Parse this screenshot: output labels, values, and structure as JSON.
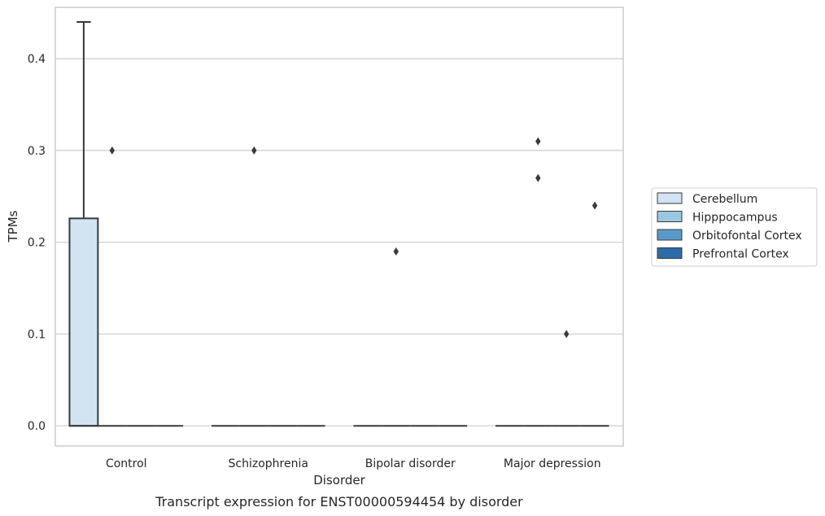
{
  "chart_data": {
    "type": "box",
    "caption": "Transcript expression for ENST00000594454 by disorder",
    "xlabel": "Disorder",
    "ylabel": "TPMs",
    "ylim": [
      -0.022,
      0.456
    ],
    "yticks": [
      0.0,
      0.1,
      0.2,
      0.3,
      0.4
    ],
    "grid": true,
    "legend_position": "right",
    "categories": [
      "Control",
      "Schizophrenia",
      "Bipolar disorder",
      "Major depression"
    ],
    "series": [
      {
        "name": "Cerebellum",
        "color": "#d2e3f2",
        "boxes": [
          {
            "q1": 0.0,
            "median": 0.0,
            "q3": 0.226,
            "whisker_low": 0.0,
            "whisker_high": 0.44,
            "outliers": []
          },
          {
            "q1": 0.0,
            "median": 0.0,
            "q3": 0.0,
            "whisker_low": 0.0,
            "whisker_high": 0.0,
            "outliers": []
          },
          {
            "q1": 0.0,
            "median": 0.0,
            "q3": 0.0,
            "whisker_low": 0.0,
            "whisker_high": 0.0,
            "outliers": []
          },
          {
            "q1": 0.0,
            "median": 0.0,
            "q3": 0.0,
            "whisker_low": 0.0,
            "whisker_high": 0.0,
            "outliers": []
          }
        ]
      },
      {
        "name": "Hipppocampus",
        "color": "#9ac8e0",
        "boxes": [
          {
            "q1": 0.0,
            "median": 0.0,
            "q3": 0.0,
            "whisker_low": 0.0,
            "whisker_high": 0.0,
            "outliers": [
              0.3
            ]
          },
          {
            "q1": 0.0,
            "median": 0.0,
            "q3": 0.0,
            "whisker_low": 0.0,
            "whisker_high": 0.0,
            "outliers": [
              0.3
            ]
          },
          {
            "q1": 0.0,
            "median": 0.0,
            "q3": 0.0,
            "whisker_low": 0.0,
            "whisker_high": 0.0,
            "outliers": [
              0.19
            ]
          },
          {
            "q1": 0.0,
            "median": 0.0,
            "q3": 0.0,
            "whisker_low": 0.0,
            "whisker_high": 0.0,
            "outliers": [
              0.31,
              0.27
            ]
          }
        ]
      },
      {
        "name": "Orbitofontal Cortex",
        "color": "#5a9ac8",
        "boxes": [
          {
            "q1": 0.0,
            "median": 0.0,
            "q3": 0.0,
            "whisker_low": 0.0,
            "whisker_high": 0.0,
            "outliers": []
          },
          {
            "q1": 0.0,
            "median": 0.0,
            "q3": 0.0,
            "whisker_low": 0.0,
            "whisker_high": 0.0,
            "outliers": []
          },
          {
            "q1": 0.0,
            "median": 0.0,
            "q3": 0.0,
            "whisker_low": 0.0,
            "whisker_high": 0.0,
            "outliers": []
          },
          {
            "q1": 0.0,
            "median": 0.0,
            "q3": 0.0,
            "whisker_low": 0.0,
            "whisker_high": 0.0,
            "outliers": [
              0.1
            ]
          }
        ]
      },
      {
        "name": "Prefrontal Cortex",
        "color": "#2b6ca8",
        "boxes": [
          {
            "q1": 0.0,
            "median": 0.0,
            "q3": 0.0,
            "whisker_low": 0.0,
            "whisker_high": 0.0,
            "outliers": []
          },
          {
            "q1": 0.0,
            "median": 0.0,
            "q3": 0.0,
            "whisker_low": 0.0,
            "whisker_high": 0.0,
            "outliers": []
          },
          {
            "q1": 0.0,
            "median": 0.0,
            "q3": 0.0,
            "whisker_low": 0.0,
            "whisker_high": 0.0,
            "outliers": []
          },
          {
            "q1": 0.0,
            "median": 0.0,
            "q3": 0.0,
            "whisker_low": 0.0,
            "whisker_high": 0.0,
            "outliers": [
              0.24
            ]
          }
        ]
      }
    ]
  }
}
